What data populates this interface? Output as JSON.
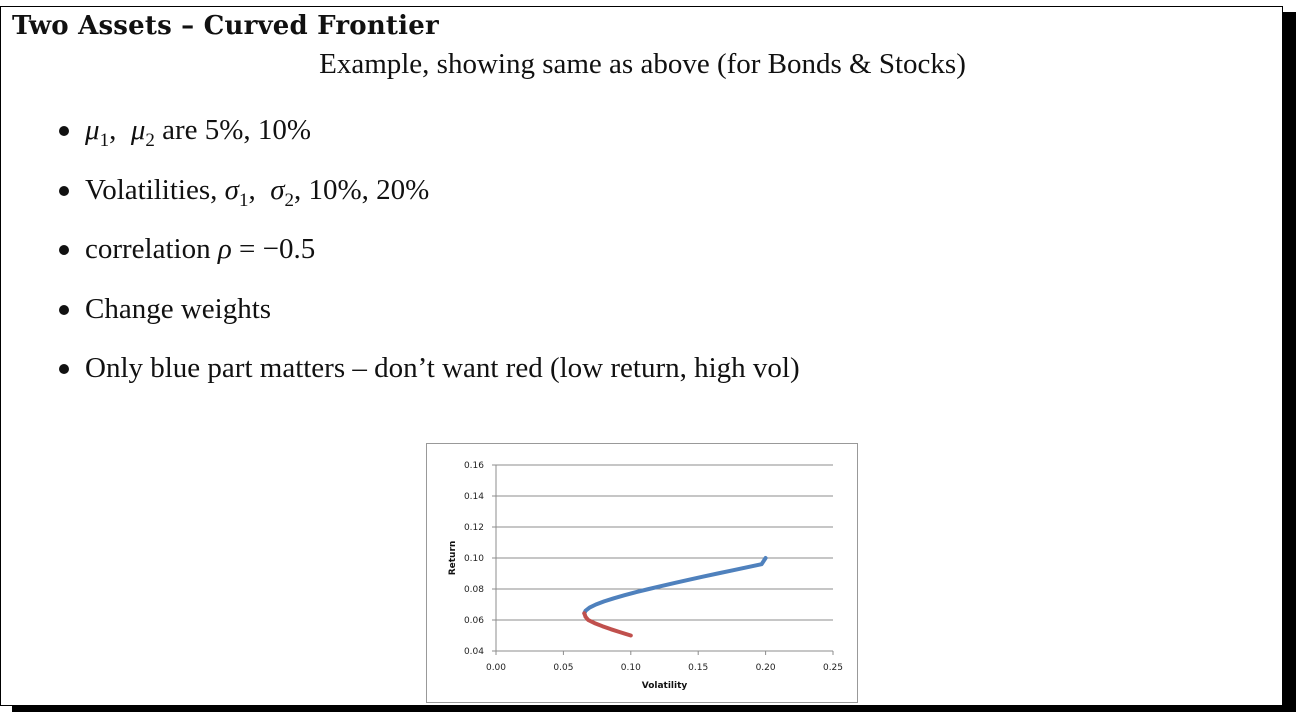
{
  "slide": {
    "title": "Two Assets – Curved Frontier",
    "subtitle": "Example, showing same as above (for Bonds & Stocks)",
    "bullets": [
      {
        "id": "means",
        "mu1": "μ",
        "sub1": "1",
        "mu2": "μ",
        "sub2": "2",
        "text": " are 5%, 10%"
      },
      {
        "id": "vols",
        "prefix": "Volatilities, ",
        "s1": "σ",
        "sub1": "1",
        "s2": "σ",
        "sub2": "2",
        "text": ", 10%, 20%"
      },
      {
        "id": "corr",
        "prefix": "correlation ",
        "rho": "ρ",
        "text": " = −0.5"
      },
      {
        "id": "weights",
        "text": "Change weights"
      },
      {
        "id": "note",
        "text": "Only blue part matters – don’t want red (low return, high vol)"
      }
    ]
  },
  "chart_data": {
    "type": "line",
    "xlabel": "Volatility",
    "ylabel": "Return",
    "xlim": [
      0.0,
      0.25
    ],
    "ylim": [
      0.04,
      0.16
    ],
    "xticks": [
      "0.00",
      "0.05",
      "0.10",
      "0.15",
      "0.20",
      "0.25"
    ],
    "yticks": [
      "0.04",
      "0.06",
      "0.08",
      "0.10",
      "0.12",
      "0.14",
      "0.16"
    ],
    "grid": "horizontal",
    "series": [
      {
        "color": "#4f81bd",
        "x": [
          0.0655,
          0.0665,
          0.0694,
          0.0741,
          0.0802,
          0.0874,
          0.0954,
          0.1041,
          0.1134,
          0.123,
          0.133,
          0.1433,
          0.1538,
          0.1644,
          0.1752,
          0.1861,
          0.197,
          0.2
        ],
        "y": [
          0.0643,
          0.066,
          0.068,
          0.07,
          0.072,
          0.074,
          0.076,
          0.078,
          0.08,
          0.082,
          0.084,
          0.086,
          0.088,
          0.09,
          0.092,
          0.094,
          0.096,
          0.1
        ]
      },
      {
        "color": "#c0504d",
        "x": [
          0.1,
          0.0925,
          0.0854,
          0.0789,
          0.0731,
          0.0684,
          0.0665,
          0.0655
        ],
        "y": [
          0.05,
          0.052,
          0.054,
          0.056,
          0.058,
          0.06,
          0.062,
          0.0643
        ]
      }
    ]
  }
}
